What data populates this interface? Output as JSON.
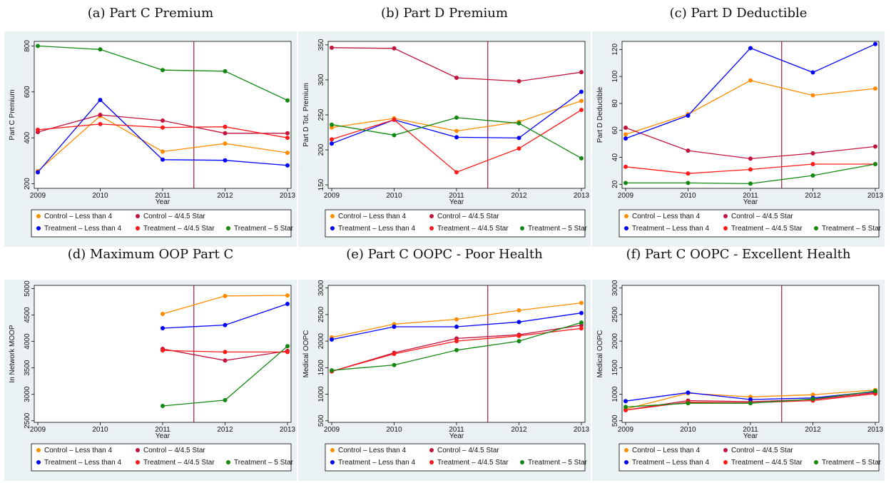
{
  "colors": {
    "panel_bg": "#eaf2f3",
    "plot_bg": "#ffffff",
    "cutoff_line": "#a01c3c",
    "Control – Less than 4": "#ff8c00",
    "Control – 4/4.5 Star": "#c1143c",
    "Treatment – Less than 4": "#0000ff",
    "Treatment – 4/4.5 Star": "#ff1a1a",
    "Treatment – 5 Star": "#118811"
  },
  "legend": {
    "labels": [
      "Control – Less than 4",
      "Control – 4/4.5 Star",
      "Treatment – Less than 4",
      "Treatment – 4/4.5 Star",
      "Treatment – 5 Star"
    ]
  },
  "chart_data": [
    {
      "type": "line",
      "title": "(a) Part C Premium",
      "xlabel": "Year",
      "ylabel": "Part C Premium",
      "x": [
        2009,
        2010,
        2011,
        2012,
        2013
      ],
      "ylim": [
        180,
        820
      ],
      "yticks": [
        200,
        400,
        600,
        800
      ],
      "vline": 2011.5,
      "grid": false,
      "legend_position": "bottom",
      "series": [
        {
          "name": "Control – Less than 4",
          "values": [
            255,
            495,
            340,
            375,
            335
          ]
        },
        {
          "name": "Control – 4/4.5 Star",
          "values": [
            425,
            500,
            475,
            420,
            420
          ]
        },
        {
          "name": "Treatment – Less than 4",
          "values": [
            250,
            565,
            305,
            302,
            280
          ]
        },
        {
          "name": "Treatment – 4/4.5 Star",
          "values": [
            435,
            460,
            445,
            448,
            400
          ]
        },
        {
          "name": "Treatment – 5 Star",
          "values": [
            800,
            785,
            695,
            690,
            563
          ]
        }
      ]
    },
    {
      "type": "line",
      "title": "(b) Part D Premium",
      "xlabel": "Year",
      "ylabel": "Part D Tot. Premium",
      "x": [
        2009,
        2010,
        2011,
        2012,
        2013
      ],
      "ylim": [
        145,
        355
      ],
      "yticks": [
        150,
        200,
        250,
        300,
        350
      ],
      "vline": 2011.5,
      "grid": false,
      "legend_position": "bottom",
      "series": [
        {
          "name": "Control – Less than 4",
          "values": [
            232,
            245,
            227,
            240,
            270
          ]
        },
        {
          "name": "Control – 4/4.5 Star",
          "values": [
            346,
            345,
            303,
            298,
            311
          ]
        },
        {
          "name": "Treatment – Less than 4",
          "values": [
            209,
            243,
            218,
            217,
            283
          ]
        },
        {
          "name": "Treatment – 4/4.5 Star",
          "values": [
            215,
            243,
            168,
            202,
            257
          ]
        },
        {
          "name": "Treatment – 5 Star",
          "values": [
            236,
            221,
            246,
            238,
            188
          ]
        }
      ]
    },
    {
      "type": "line",
      "title": "(c) Part D Deductible",
      "xlabel": "Year",
      "ylabel": "Part D Deductible",
      "x": [
        2009,
        2010,
        2011,
        2012,
        2013
      ],
      "ylim": [
        17,
        126
      ],
      "yticks": [
        20,
        40,
        60,
        80,
        100,
        120
      ],
      "vline": 2011.5,
      "grid": false,
      "legend_position": "bottom",
      "series": [
        {
          "name": "Control – Less than 4",
          "values": [
            57,
            72,
            97,
            86,
            91
          ]
        },
        {
          "name": "Control – 4/4.5 Star",
          "values": [
            62,
            45,
            39,
            43,
            48
          ]
        },
        {
          "name": "Treatment – Less than 4",
          "values": [
            54,
            71,
            121,
            103,
            124
          ]
        },
        {
          "name": "Treatment – 4/4.5 Star",
          "values": [
            33,
            28,
            31,
            35,
            35
          ]
        },
        {
          "name": "Treatment – 5 Star",
          "values": [
            21,
            21,
            20.5,
            26.5,
            35
          ]
        }
      ]
    },
    {
      "type": "line",
      "title": "(d) Maximum OOP Part C",
      "xlabel": "Year",
      "ylabel": "In Network MOOP",
      "x": [
        2009,
        2010,
        2011,
        2012,
        2013
      ],
      "ylim": [
        2470,
        5060
      ],
      "yticks": [
        2500,
        3000,
        3500,
        4000,
        4500,
        5000
      ],
      "vline": 2011.5,
      "grid": false,
      "legend_position": "bottom",
      "series": [
        {
          "name": "Control – Less than 4",
          "values": [
            null,
            null,
            4520,
            4860,
            4870
          ]
        },
        {
          "name": "Control – 4/4.5 Star",
          "values": [
            null,
            null,
            3860,
            3640,
            3820
          ]
        },
        {
          "name": "Treatment – Less than 4",
          "values": [
            null,
            null,
            4250,
            4310,
            4710
          ]
        },
        {
          "name": "Treatment – 4/4.5 Star",
          "values": [
            null,
            null,
            3830,
            3800,
            3800
          ]
        },
        {
          "name": "Treatment – 5 Star",
          "values": [
            null,
            null,
            2780,
            2890,
            3910
          ]
        }
      ]
    },
    {
      "type": "line",
      "title": "(e) Part C OOPC - Poor Health",
      "xlabel": "Year",
      "ylabel": "Medical OOPC",
      "x": [
        2009,
        2010,
        2011,
        2012,
        2013
      ],
      "ylim": [
        470,
        3050
      ],
      "yticks": [
        500,
        1000,
        1500,
        2000,
        2500,
        3000
      ],
      "vline": 2011.5,
      "grid": false,
      "legend_position": "bottom",
      "series": [
        {
          "name": "Control – Less than 4",
          "values": [
            2070,
            2320,
            2410,
            2580,
            2720
          ]
        },
        {
          "name": "Control – 4/4.5 Star",
          "values": [
            1430,
            1780,
            2050,
            2120,
            2300
          ]
        },
        {
          "name": "Treatment – Less than 4",
          "values": [
            2030,
            2270,
            2270,
            2360,
            2530
          ]
        },
        {
          "name": "Treatment – 4/4.5 Star",
          "values": [
            1430,
            1760,
            2000,
            2100,
            2240
          ]
        },
        {
          "name": "Treatment – 5 Star",
          "values": [
            1450,
            1550,
            1830,
            2000,
            2350
          ]
        }
      ]
    },
    {
      "type": "line",
      "title": "(f) Part C OOPC - Excellent Health",
      "xlabel": "Year",
      "ylabel": "Medical OOPC",
      "x": [
        2009,
        2010,
        2011,
        2012,
        2013
      ],
      "ylim": [
        470,
        3050
      ],
      "yticks": [
        500,
        1000,
        1500,
        2000,
        2500,
        3000
      ],
      "vline": 2011.5,
      "grid": false,
      "legend_position": "bottom",
      "series": [
        {
          "name": "Control – Less than 4",
          "values": [
            720,
            1020,
            950,
            990,
            1080
          ]
        },
        {
          "name": "Control – 4/4.5 Star",
          "values": [
            700,
            880,
            860,
            900,
            1030
          ]
        },
        {
          "name": "Treatment – Less than 4",
          "values": [
            870,
            1030,
            900,
            930,
            1050
          ]
        },
        {
          "name": "Treatment – 4/4.5 Star",
          "values": [
            700,
            850,
            840,
            880,
            1010
          ]
        },
        {
          "name": "Treatment – 5 Star",
          "values": [
            760,
            830,
            830,
            910,
            1060
          ]
        }
      ]
    }
  ]
}
